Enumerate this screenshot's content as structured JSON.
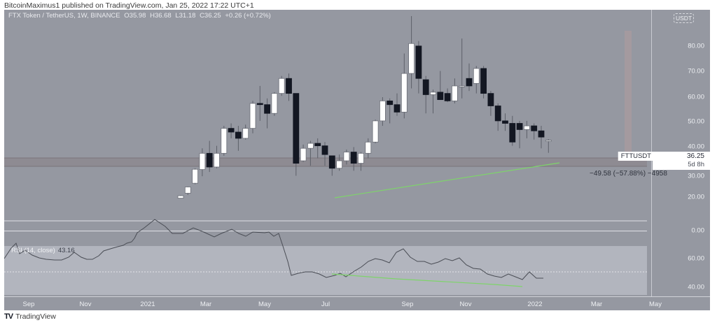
{
  "header": {
    "published": "BitcoinMaximus1 published on TradingView.com, Jan 25, 2022 17:22 UTC+1"
  },
  "legend": {
    "symbol": "FTX Token / TetherUS, 1W, BINANCE",
    "open": "O35.98",
    "high": "H36.68",
    "low": "L31.18",
    "close": "C36.25",
    "change": "+0.26 (+0.72%)"
  },
  "price_axis": {
    "currency": "USDT",
    "labels": [
      "80.00",
      "70.00",
      "60.00",
      "50.00",
      "40.00",
      "30.00",
      "20.00",
      "0.00"
    ],
    "ticker": "FTTUSDT",
    "last_price": "36.25",
    "countdown": "5d 8h"
  },
  "rsi": {
    "label": "RSI (14, close)",
    "value": "43.16",
    "labels": [
      "60.00",
      "40.00"
    ]
  },
  "measure": {
    "label": "−49.58 (−57.88%) −4958"
  },
  "time_axis": {
    "labels": [
      "Sep",
      "Nov",
      "2021",
      "Mar",
      "May",
      "Jul",
      "Sep",
      "Nov",
      "2022",
      "Mar",
      "May"
    ]
  },
  "footer": {
    "logo": "TV",
    "brand": "TradingView"
  },
  "colors": {
    "background": "#9598a1",
    "rsi_band": "#b2b5be",
    "bull": "#ffffff",
    "bear": "#131722",
    "support_zone": "#8a8489",
    "trendline": "#7ed46a"
  },
  "chart_data": [
    {
      "type": "candlestick",
      "title": "FTX Token / TetherUS, 1W, BINANCE",
      "xlabel": "",
      "ylabel": "USDT",
      "ylim": [
        0,
        88
      ],
      "x_ticks": [
        "Sep",
        "Nov",
        "2021",
        "Mar",
        "May",
        "Jul",
        "Sep",
        "Nov",
        "2022",
        "Mar",
        "May"
      ],
      "y_ticks": [
        0,
        20,
        30,
        40,
        50,
        60,
        70,
        80
      ],
      "candles_approx": [
        {
          "x": "2021-02-01",
          "o": 13.0,
          "h": 14.2,
          "l": 13.0,
          "c": 14.0
        },
        {
          "x": "2021-02-08",
          "o": 15.0,
          "h": 17.7,
          "l": 14.3,
          "c": 17.5
        },
        {
          "x": "2021-02-15",
          "o": 19.0,
          "h": 25.0,
          "l": 18.6,
          "c": 24.6
        },
        {
          "x": "2021-02-22",
          "o": 24.5,
          "h": 33.0,
          "l": 21.8,
          "c": 31.0
        },
        {
          "x": "2021-03-01",
          "o": 31.0,
          "h": 36.0,
          "l": 23.5,
          "c": 25.5
        },
        {
          "x": "2021-03-08",
          "o": 25.5,
          "h": 34.0,
          "l": 25.0,
          "c": 31.0
        },
        {
          "x": "2021-03-15",
          "o": 31.0,
          "h": 42.0,
          "l": 30.0,
          "c": 41.0
        },
        {
          "x": "2021-03-22",
          "o": 41.0,
          "h": 43.0,
          "l": 37.0,
          "c": 39.5
        },
        {
          "x": "2021-03-29",
          "o": 39.5,
          "h": 42.0,
          "l": 32.0,
          "c": 37.0
        },
        {
          "x": "2021-04-05",
          "o": 37.0,
          "h": 42.5,
          "l": 36.5,
          "c": 41.0
        },
        {
          "x": "2021-04-12",
          "o": 41.0,
          "h": 52.0,
          "l": 39.0,
          "c": 51.0
        },
        {
          "x": "2021-04-19",
          "o": 51.0,
          "h": 58.0,
          "l": 44.0,
          "c": 50.5
        },
        {
          "x": "2021-04-26",
          "o": 50.5,
          "h": 53.0,
          "l": 41.0,
          "c": 47.0
        },
        {
          "x": "2021-05-03",
          "o": 47.0,
          "h": 55.5,
          "l": 46.0,
          "c": 55.0
        },
        {
          "x": "2021-05-10",
          "o": 55.0,
          "h": 62.0,
          "l": 54.0,
          "c": 61.0
        },
        {
          "x": "2021-05-17",
          "o": 61.0,
          "h": 63.0,
          "l": 52.0,
          "c": 55.0
        },
        {
          "x": "2021-05-24",
          "o": 55.0,
          "h": 55.0,
          "l": 22.0,
          "c": 27.0
        },
        {
          "x": "2021-05-31",
          "o": 28.0,
          "h": 34.5,
          "l": 27.5,
          "c": 33.0
        },
        {
          "x": "2021-06-07",
          "o": 33.0,
          "h": 36.0,
          "l": 26.0,
          "c": 35.0
        },
        {
          "x": "2021-06-14",
          "o": 35.0,
          "h": 37.0,
          "l": 29.0,
          "c": 34.0
        },
        {
          "x": "2021-06-21",
          "o": 34.0,
          "h": 35.5,
          "l": 26.0,
          "c": 30.5
        },
        {
          "x": "2021-06-28",
          "o": 30.0,
          "h": 30.0,
          "l": 22.0,
          "c": 25.0
        },
        {
          "x": "2021-07-05",
          "o": 25.0,
          "h": 30.5,
          "l": 24.0,
          "c": 28.0
        },
        {
          "x": "2021-07-12",
          "o": 28.0,
          "h": 32.5,
          "l": 26.5,
          "c": 31.5
        },
        {
          "x": "2021-07-19",
          "o": 31.5,
          "h": 33.5,
          "l": 24.0,
          "c": 27.0
        },
        {
          "x": "2021-07-26",
          "o": 27.0,
          "h": 31.5,
          "l": 24.0,
          "c": 31.0
        },
        {
          "x": "2021-08-02",
          "o": 31.0,
          "h": 37.0,
          "l": 29.0,
          "c": 35.5
        },
        {
          "x": "2021-08-09",
          "o": 35.5,
          "h": 44.5,
          "l": 35.0,
          "c": 44.0
        },
        {
          "x": "2021-08-16",
          "o": 44.0,
          "h": 53.5,
          "l": 42.0,
          "c": 52.0
        },
        {
          "x": "2021-08-23",
          "o": 52.0,
          "h": 53.0,
          "l": 43.0,
          "c": 50.5
        },
        {
          "x": "2021-08-30",
          "o": 50.5,
          "h": 55.0,
          "l": 46.0,
          "c": 47.5
        },
        {
          "x": "2021-09-06",
          "o": 47.5,
          "h": 71.0,
          "l": 45.0,
          "c": 63.0
        },
        {
          "x": "2021-09-13",
          "o": 63.0,
          "h": 86.0,
          "l": 57.0,
          "c": 75.0
        },
        {
          "x": "2021-09-20",
          "o": 74.0,
          "h": 76.0,
          "l": 55.0,
          "c": 61.0
        },
        {
          "x": "2021-09-27",
          "o": 60.5,
          "h": 62.0,
          "l": 47.0,
          "c": 54.5
        },
        {
          "x": "2021-10-04",
          "o": 54.5,
          "h": 56.5,
          "l": 47.0,
          "c": 55.5
        },
        {
          "x": "2021-10-11",
          "o": 55.5,
          "h": 64.0,
          "l": 52.5,
          "c": 52.5
        },
        {
          "x": "2021-10-18",
          "o": 55.0,
          "h": 57.0,
          "l": 51.5,
          "c": 52.0
        },
        {
          "x": "2021-10-25",
          "o": 52.0,
          "h": 61.0,
          "l": 51.0,
          "c": 58.0
        },
        {
          "x": "2021-11-01",
          "o": 58.0,
          "h": 77.0,
          "l": 53.0,
          "c": 58.0
        },
        {
          "x": "2021-11-08",
          "o": 61.0,
          "h": 67.0,
          "l": 56.0,
          "c": 58.0
        },
        {
          "x": "2021-11-15",
          "o": 59.0,
          "h": 66.0,
          "l": 55.0,
          "c": 65.0
        },
        {
          "x": "2021-11-22",
          "o": 65.0,
          "h": 66.0,
          "l": 53.0,
          "c": 55.0
        },
        {
          "x": "2021-11-29",
          "o": 55.0,
          "h": 56.0,
          "l": 46.0,
          "c": 50.0
        },
        {
          "x": "2021-12-06",
          "o": 50.0,
          "h": 51.0,
          "l": 40.0,
          "c": 44.0
        },
        {
          "x": "2021-12-13",
          "o": 44.0,
          "h": 47.0,
          "l": 40.0,
          "c": 43.0
        },
        {
          "x": "2021-12-20",
          "o": 43.0,
          "h": 46.0,
          "l": 34.0,
          "c": 35.5
        },
        {
          "x": "2021-12-27",
          "o": 43.0,
          "h": 44.0,
          "l": 33.0,
          "c": 40.5
        },
        {
          "x": "2022-01-03",
          "o": 40.5,
          "h": 44.0,
          "l": 37.0,
          "c": 42.0
        },
        {
          "x": "2022-01-10",
          "o": 42.0,
          "h": 43.0,
          "l": 36.5,
          "c": 40.0
        },
        {
          "x": "2022-01-17",
          "o": 40.0,
          "h": 42.0,
          "l": 33.0,
          "c": 37.5
        },
        {
          "x": "2022-01-24",
          "o": 35.98,
          "h": 36.68,
          "l": 31.18,
          "c": 36.25
        }
      ],
      "annotations": [
        {
          "type": "horizontal_zone",
          "from": 33.0,
          "to": 36.0,
          "label": "support"
        },
        {
          "type": "trendline",
          "color": "green",
          "from": {
            "x": "2021-07-05",
            "y": 23.5
          },
          "to": {
            "x": "2022-01-24",
            "y": 35.0
          }
        },
        {
          "type": "measure",
          "label": "−49.58 (−57.88%) −4958",
          "from": 85.6,
          "to": 36.0
        }
      ],
      "last": {
        "ticker": "FTTUSDT",
        "price": 36.25,
        "countdown": "5d 8h"
      }
    },
    {
      "type": "line",
      "title": "RSI (14, close)",
      "value": 43.16,
      "y_ticks": [
        40,
        60
      ],
      "bands": [
        70,
        30
      ],
      "note": "bearish divergence: lower RSI lows vs higher price lows (green line from Jul 2021 to Jan 2022)"
    }
  ]
}
